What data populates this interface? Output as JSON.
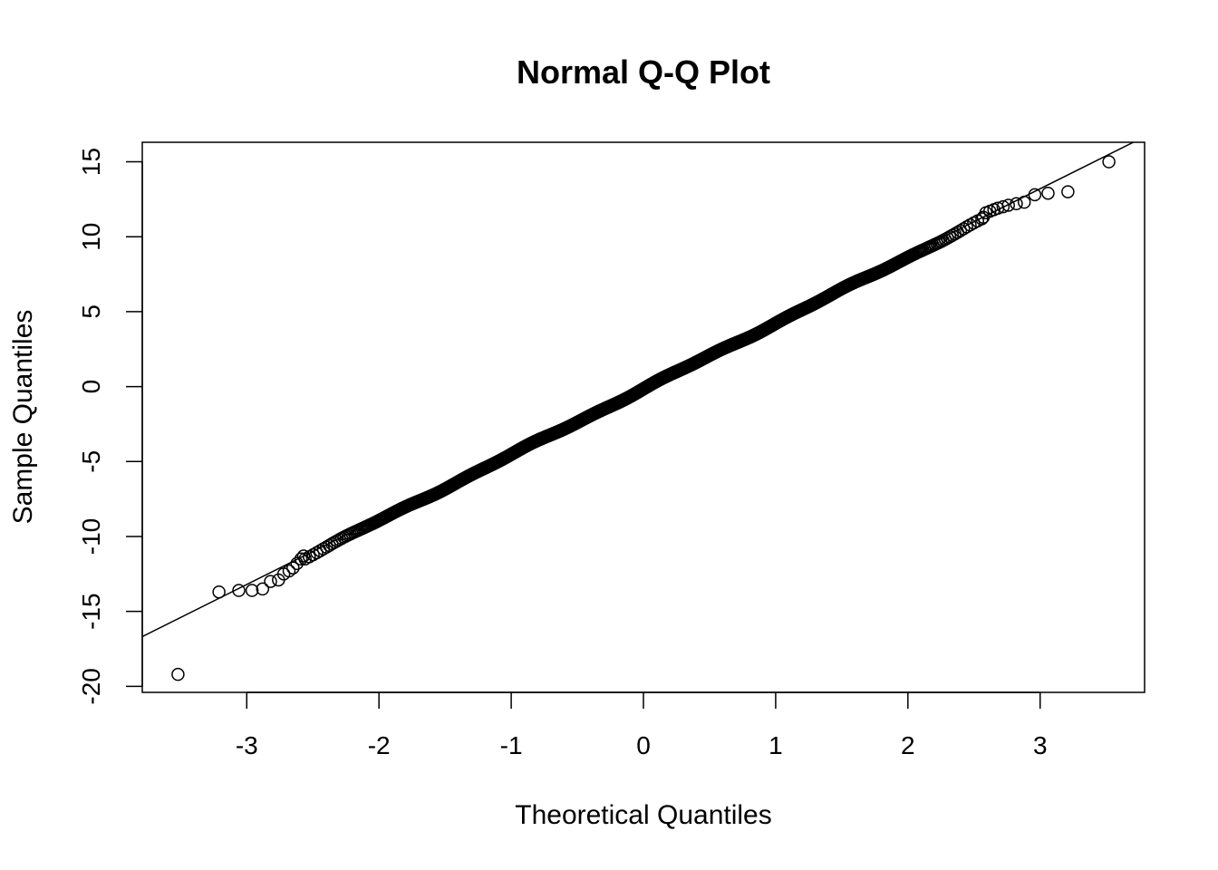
{
  "chart_data": {
    "type": "scatter",
    "title": "Normal Q-Q Plot",
    "xlabel": "Theoretical Quantiles",
    "ylabel": "Sample Quantiles",
    "xlim": [
      -3.79,
      3.79
    ],
    "ylim": [
      -20.4,
      16.3
    ],
    "x_ticks": [
      -3,
      -2,
      -1,
      0,
      1,
      2,
      3
    ],
    "x_tick_labels": [
      "-3",
      "-2",
      "-1",
      "0",
      "1",
      "2",
      "3"
    ],
    "y_ticks": [
      -20,
      -15,
      -10,
      -5,
      0,
      5,
      10,
      15
    ],
    "y_tick_labels": [
      "-20",
      "-15",
      "-10",
      "-5",
      "0",
      "5",
      "10",
      "15"
    ],
    "grid": false,
    "reference_line": {
      "intercept": 0,
      "slope": 4.4
    },
    "sample_size": 2000,
    "lower_tail": {
      "x": [
        -3.52,
        -3.21,
        -3.06,
        -2.96,
        -2.88,
        -2.82,
        -2.76,
        -2.72,
        -2.68,
        -2.65,
        -2.62,
        -2.59,
        -2.57
      ],
      "y": [
        -19.2,
        -13.7,
        -13.6,
        -13.6,
        -13.5,
        -13.0,
        -12.9,
        -12.5,
        -12.3,
        -12.1,
        -11.8,
        -11.5,
        -11.3
      ]
    },
    "upper_tail": {
      "x": [
        2.57,
        2.59,
        2.62,
        2.65,
        2.68,
        2.72,
        2.76,
        2.82,
        2.88,
        2.96,
        3.06,
        3.21,
        3.52
      ],
      "y": [
        11.3,
        11.6,
        11.7,
        11.8,
        11.9,
        12.0,
        12.1,
        12.2,
        12.3,
        12.8,
        12.9,
        13.0,
        15.0
      ]
    }
  }
}
